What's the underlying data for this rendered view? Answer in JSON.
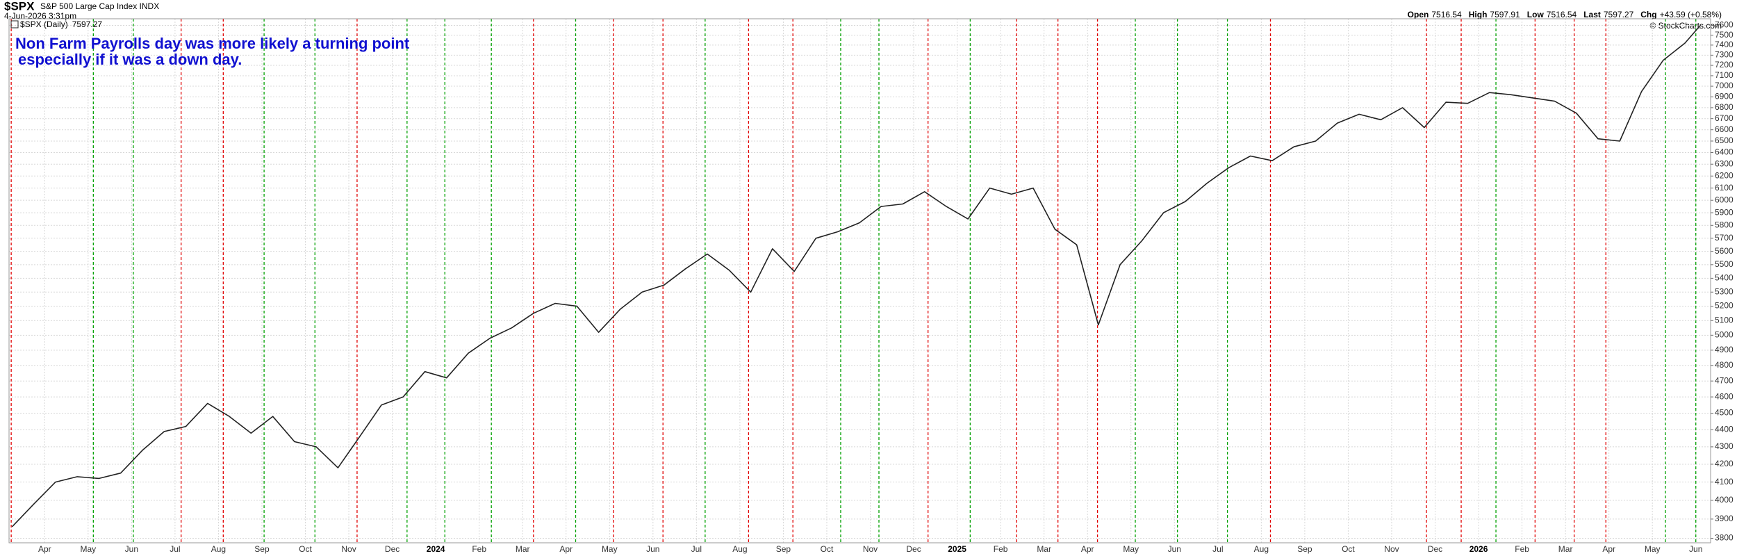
{
  "chart_data": {
    "type": "line",
    "title": "$SPX",
    "subtitle": "S&P 500 Large Cap Index INDX",
    "date": "4-Jun-2026 3:31pm",
    "credit": "© StockCharts.com",
    "quote": [
      {
        "label": "Open",
        "value": "7516.54"
      },
      {
        "label": "High",
        "value": "7597.91"
      },
      {
        "label": "Low",
        "value": "7516.54"
      },
      {
        "label": "Last",
        "value": "7597.27"
      },
      {
        "label": "Chg",
        "value": "+43.59 (+0.58%)"
      }
    ],
    "annotations": [
      "Non Farm Payrolls day was more likely a turning point",
      "especially if it was a down day."
    ],
    "log_scale": true,
    "grid": true,
    "x": [
      2.25,
      2.75,
      3.25,
      3.75,
      4.25,
      4.75,
      5.25,
      5.75,
      6.25,
      6.75,
      7.25,
      7.75,
      8.25,
      8.75,
      9.25,
      9.75,
      10.25,
      10.75,
      11.25,
      11.75,
      12.25,
      12.75,
      13.25,
      13.75,
      14.25,
      14.75,
      15.25,
      15.75,
      16.25,
      16.75,
      17.25,
      17.75,
      18.25,
      18.75,
      19.25,
      19.75,
      20.25,
      20.75,
      21.25,
      21.75,
      22.25,
      22.75,
      23.25,
      23.75,
      24.25,
      24.75,
      25.25,
      25.75,
      26.25,
      26.75,
      27.25,
      27.75,
      28.25,
      28.75,
      29.25,
      29.75,
      30.25,
      30.75,
      31.25,
      31.75,
      32.25,
      32.75,
      33.25,
      33.75,
      34.25,
      34.75,
      35.25,
      35.75,
      36.25,
      36.75,
      37.25,
      37.75,
      38.25,
      38.75,
      39.25,
      39.75,
      40.25,
      40.75,
      41.1
    ],
    "series": [
      {
        "name": "$SPX (Daily)",
        "color": "#222222",
        "values": [
          3860,
          3980,
          4100,
          4130,
          4120,
          4150,
          4280,
          4390,
          4420,
          4560,
          4480,
          4380,
          4480,
          4330,
          4300,
          4180,
          4360,
          4550,
          4600,
          4760,
          4720,
          4880,
          4980,
          5050,
          5150,
          5220,
          5200,
          5020,
          5180,
          5300,
          5350,
          5470,
          5580,
          5460,
          5300,
          5620,
          5450,
          5700,
          5750,
          5820,
          5950,
          5970,
          6070,
          5950,
          5850,
          6100,
          6050,
          6100,
          5770,
          5650,
          5070,
          5500,
          5680,
          5900,
          5990,
          6140,
          6270,
          6370,
          6330,
          6450,
          6500,
          6660,
          6740,
          6690,
          6800,
          6620,
          6850,
          6840,
          6940,
          6920,
          6890,
          6860,
          6750,
          6520,
          6500,
          6950,
          7250,
          7420,
          7597.27
        ]
      }
    ],
    "nfp_lines": {
      "x": [
        2.23,
        4.12,
        5.04,
        6.14,
        7.11,
        8.05,
        9.22,
        10.19,
        11.34,
        12.21,
        13.28,
        14.25,
        15.22,
        16.09,
        17.23,
        18.2,
        19.2,
        20.22,
        21.32,
        22.2,
        23.33,
        24.3,
        25.37,
        26.32,
        27.23,
        28.1,
        29.07,
        30.22,
        31.21,
        34.8,
        35.6,
        36.4,
        37.3,
        38.2,
        38.93,
        40.3,
        41.0
      ],
      "colors": [
        "#e00000",
        "#00a000",
        "#00a000",
        "#e00000",
        "#e00000",
        "#00a000",
        "#00a000",
        "#e00000",
        "#00a000",
        "#00a000",
        "#00a000",
        "#e00000",
        "#00a000",
        "#e00000",
        "#e00000",
        "#00a000",
        "#e00000",
        "#e00000",
        "#00a000",
        "#00a000",
        "#e00000",
        "#00a000",
        "#e00000",
        "#e00000",
        "#e00000",
        "#00a000",
        "#00a000",
        "#00a000",
        "#e00000",
        "#e00000",
        "#e00000",
        "#00a000",
        "#e00000",
        "#e00000",
        "#e00000",
        "#00a000",
        "#00a000"
      ]
    },
    "xlim": [
      2.18,
      41.34
    ],
    "xticks": [
      {
        "value": 3,
        "label": "Apr"
      },
      {
        "value": 4,
        "label": "May"
      },
      {
        "value": 5,
        "label": "Jun"
      },
      {
        "value": 6,
        "label": "Jul"
      },
      {
        "value": 7,
        "label": "Aug"
      },
      {
        "value": 8,
        "label": "Sep"
      },
      {
        "value": 9,
        "label": "Oct"
      },
      {
        "value": 10,
        "label": "Nov"
      },
      {
        "value": 11,
        "label": "Dec"
      },
      {
        "value": 12,
        "label": "2024"
      },
      {
        "value": 13,
        "label": "Feb"
      },
      {
        "value": 14,
        "label": "Mar"
      },
      {
        "value": 15,
        "label": "Apr"
      },
      {
        "value": 16,
        "label": "May"
      },
      {
        "value": 17,
        "label": "Jun"
      },
      {
        "value": 18,
        "label": "Jul"
      },
      {
        "value": 19,
        "label": "Aug"
      },
      {
        "value": 20,
        "label": "Sep"
      },
      {
        "value": 21,
        "label": "Oct"
      },
      {
        "value": 22,
        "label": "Nov"
      },
      {
        "value": 23,
        "label": "Dec"
      },
      {
        "value": 24,
        "label": "2025"
      },
      {
        "value": 25,
        "label": "Feb"
      },
      {
        "value": 26,
        "label": "Mar"
      },
      {
        "value": 27,
        "label": "Apr"
      },
      {
        "value": 28,
        "label": "May"
      },
      {
        "value": 29,
        "label": "Jun"
      },
      {
        "value": 30,
        "label": "Jul"
      },
      {
        "value": 31,
        "label": "Aug"
      },
      {
        "value": 32,
        "label": "Sep"
      },
      {
        "value": 33,
        "label": "Oct"
      },
      {
        "value": 34,
        "label": "Nov"
      },
      {
        "value": 35,
        "label": "Dec"
      },
      {
        "value": 36,
        "label": "2026"
      },
      {
        "value": 37,
        "label": "Feb"
      },
      {
        "value": 38,
        "label": "Mar"
      },
      {
        "value": 39,
        "label": "Apr"
      },
      {
        "value": 40,
        "label": "May"
      },
      {
        "value": 41,
        "label": "Jun"
      }
    ],
    "ylim": [
      3777,
      7668
    ],
    "yticks": [
      3800,
      3900,
      4000,
      4100,
      4200,
      4300,
      4400,
      4500,
      4600,
      4700,
      4800,
      4900,
      5000,
      5100,
      5200,
      5300,
      5400,
      5500,
      5600,
      5700,
      5800,
      5900,
      6000,
      6100,
      6200,
      6300,
      6400,
      6500,
      6600,
      6700,
      6800,
      6900,
      7000,
      7100,
      7200,
      7300,
      7400,
      7500,
      7600
    ]
  }
}
